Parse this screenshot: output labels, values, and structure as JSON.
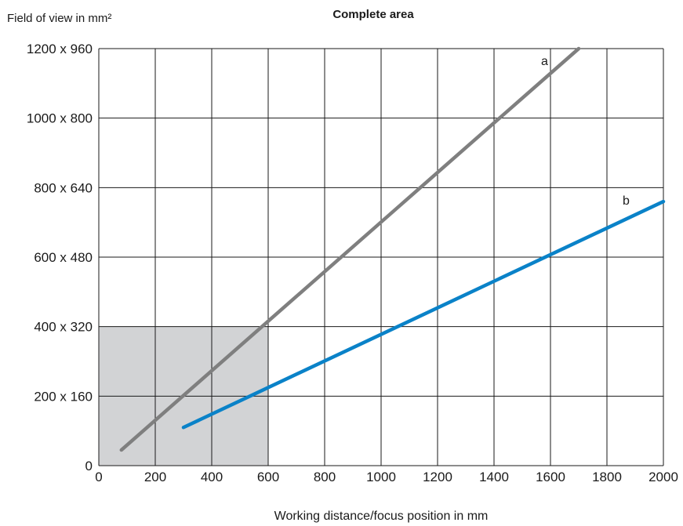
{
  "chart_data": {
    "type": "line",
    "title": "Complete area",
    "xlabel": "Working distance/focus position in mm",
    "ylabel": "Field of view in mm²",
    "x_ticks": [
      0,
      200,
      400,
      600,
      800,
      1000,
      1200,
      1400,
      1600,
      1800,
      2000
    ],
    "x_tick_labels": [
      "0",
      "200",
      "400",
      "600",
      "800",
      "1000",
      "1200",
      "1400",
      "1600",
      "1800",
      "2000"
    ],
    "y_ticks": [
      0,
      200,
      400,
      600,
      800,
      1000,
      1200
    ],
    "y_tick_labels": [
      "0",
      "200 x 160",
      "400 x 320",
      "600 x 480",
      "800 x 640",
      "1000 x 800",
      "1200 x 960"
    ],
    "xlim": [
      0,
      2000
    ],
    "ylim": [
      0,
      1200
    ],
    "grid": true,
    "shaded_region": {
      "x": [
        0,
        600
      ],
      "y": [
        0,
        400
      ],
      "color": "#d2d3d5"
    },
    "series": [
      {
        "name": "a",
        "color": "#7f7f7f",
        "points": [
          [
            80,
            45
          ],
          [
            1700,
            1200
          ]
        ]
      },
      {
        "name": "b",
        "color": "#0a82c8",
        "points": [
          [
            300,
            110
          ],
          [
            2000,
            760
          ]
        ]
      }
    ]
  }
}
